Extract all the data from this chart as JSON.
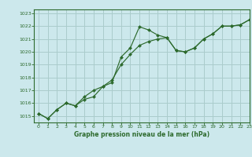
{
  "title": "Graphe pression niveau de la mer (hPa)",
  "bg_color": "#cce8ec",
  "grid_color": "#aacccc",
  "line_color": "#2d6a2d",
  "marker_color": "#2d6a2d",
  "xlim": [
    -0.5,
    23
  ],
  "ylim": [
    1014.5,
    1023.3
  ],
  "xticks": [
    0,
    1,
    2,
    3,
    4,
    5,
    6,
    7,
    8,
    9,
    10,
    11,
    12,
    13,
    14,
    15,
    16,
    17,
    18,
    19,
    20,
    21,
    22,
    23
  ],
  "yticks": [
    1015,
    1016,
    1017,
    1018,
    1019,
    1020,
    1021,
    1022,
    1023
  ],
  "series1_x": [
    0,
    1,
    2,
    3,
    4,
    5,
    6,
    7,
    8,
    9,
    10,
    11,
    12,
    13,
    14,
    15,
    16,
    17,
    18,
    19,
    20,
    21,
    22,
    23
  ],
  "series1_y": [
    1015.2,
    1014.8,
    1015.5,
    1016.0,
    1015.8,
    1016.5,
    1017.0,
    1017.3,
    1017.6,
    1019.6,
    1020.3,
    1021.95,
    1021.7,
    1021.3,
    1021.1,
    1020.1,
    1020.0,
    1020.3,
    1021.0,
    1021.4,
    1022.0,
    1022.0,
    1022.1,
    1022.5
  ],
  "series2_x": [
    0,
    1,
    2,
    3,
    4,
    5,
    6,
    7,
    8,
    9,
    10,
    11,
    12,
    13,
    14,
    15,
    16,
    17,
    18,
    19,
    20,
    21,
    22,
    23
  ],
  "series2_y": [
    1015.2,
    1014.8,
    1015.5,
    1016.0,
    1015.8,
    1016.3,
    1016.5,
    1017.3,
    1017.8,
    1019.0,
    1019.8,
    1020.5,
    1020.8,
    1021.0,
    1021.1,
    1020.1,
    1020.0,
    1020.3,
    1021.0,
    1021.4,
    1022.0,
    1022.0,
    1022.1,
    1022.5
  ]
}
